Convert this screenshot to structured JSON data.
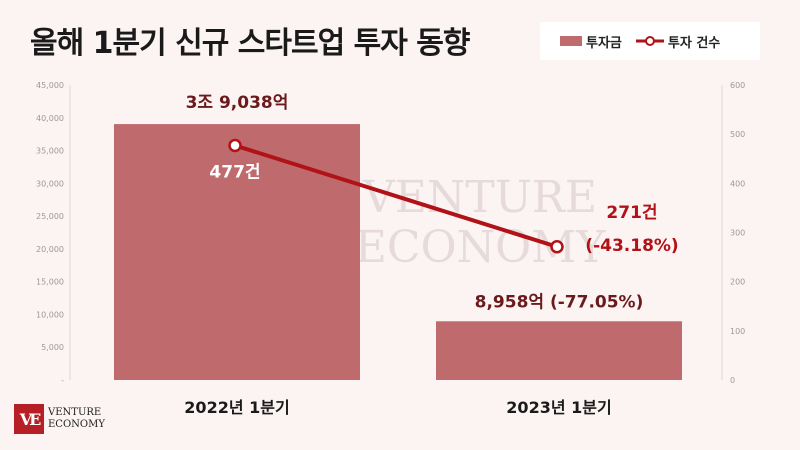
{
  "title": "올해 1분기 신규 스타트업 투자 동향",
  "legend": {
    "bar_label": "투자금",
    "line_label": "투자 건수"
  },
  "watermark": {
    "line1": "VENTURE",
    "line2": "ECONOMY"
  },
  "logo": {
    "mark": "VE",
    "line1": "VENTURE",
    "line2": "ECONOMY"
  },
  "colors": {
    "bar": "#bf6b6d",
    "line": "#b11217",
    "label_dark": "#6b1a1c",
    "label_red": "#b11217"
  },
  "chart_data": {
    "type": "bar+line",
    "categories": [
      "2022년 1분기",
      "2023년 1분기"
    ],
    "series": [
      {
        "name": "투자금",
        "type": "bar",
        "axis": "left",
        "values": [
          39038,
          8958
        ],
        "labels": [
          "3조 9,038억",
          "8,958억 (-77.05%)"
        ]
      },
      {
        "name": "투자 건수",
        "type": "line",
        "axis": "right",
        "values": [
          477,
          271
        ],
        "labels": [
          [
            "477건"
          ],
          [
            "271건",
            "(-43.18%)"
          ]
        ]
      }
    ],
    "y_left": {
      "ylim": [
        0,
        45000
      ],
      "ticks": [
        "-",
        "5,000",
        "10,000",
        "15,000",
        "20,000",
        "25,000",
        "30,000",
        "35,000",
        "40,000",
        "45,000"
      ]
    },
    "y_right": {
      "ylim": [
        0,
        600
      ],
      "ticks": [
        "0",
        "100",
        "200",
        "300",
        "400",
        "500",
        "600"
      ]
    },
    "legend_position": "top-right",
    "grid": false
  }
}
